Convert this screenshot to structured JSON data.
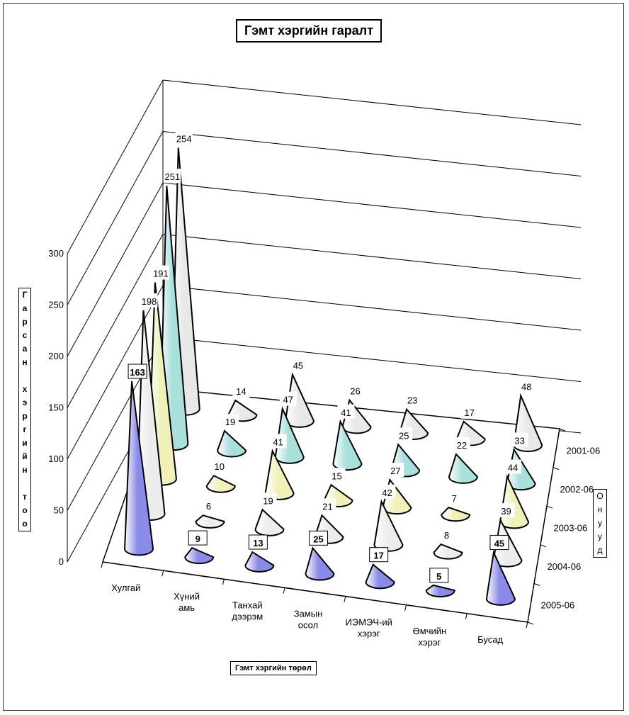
{
  "chart_data": {
    "type": "bar",
    "subtype": "3d-cone",
    "title": "Гэмт хэргийн гаралт",
    "xlabel": "Гэмт хэргийн төрөл",
    "ylabel": "Гарсан хэргийн тоо",
    "zlabel": "Онууд",
    "categories": [
      "Хулгай",
      "Хүний амь",
      "Танхай дээрэм",
      "Замын осол",
      "ИЭМЭЧ-ий хэрэг",
      "Өмчийн хэрэг",
      "Бусад"
    ],
    "category_labels": [
      [
        "Хулгай"
      ],
      [
        "Хүний",
        "амь"
      ],
      [
        "Танхай",
        "дээрэм"
      ],
      [
        "Замын",
        "осол"
      ],
      [
        "ИЭМЭЧ-ий",
        "хэрэг"
      ],
      [
        "Өмчийн",
        "хэрэг"
      ],
      [
        "Бусад"
      ]
    ],
    "ylim": [
      0,
      300
    ],
    "yticks": [
      0,
      50,
      100,
      150,
      200,
      250,
      300
    ],
    "grid": true,
    "series": [
      {
        "name": "2001-06",
        "values": [
          254,
          14,
          45,
          26,
          23,
          17,
          48
        ],
        "color": "#e8e8e8"
      },
      {
        "name": "2002-06",
        "values": [
          251,
          19,
          47,
          41,
          25,
          22,
          33
        ],
        "color": "#a8e0dc"
      },
      {
        "name": "2003-06",
        "values": [
          191,
          10,
          41,
          15,
          27,
          7,
          44
        ],
        "color": "#f0f0b8"
      },
      {
        "name": "2004-06",
        "values": [
          198,
          6,
          19,
          21,
          42,
          8,
          39
        ],
        "color": "#ececec"
      },
      {
        "name": "2005-06",
        "values": [
          163,
          9,
          13,
          25,
          17,
          5,
          45
        ],
        "color": "#8a8ae8"
      }
    ]
  }
}
